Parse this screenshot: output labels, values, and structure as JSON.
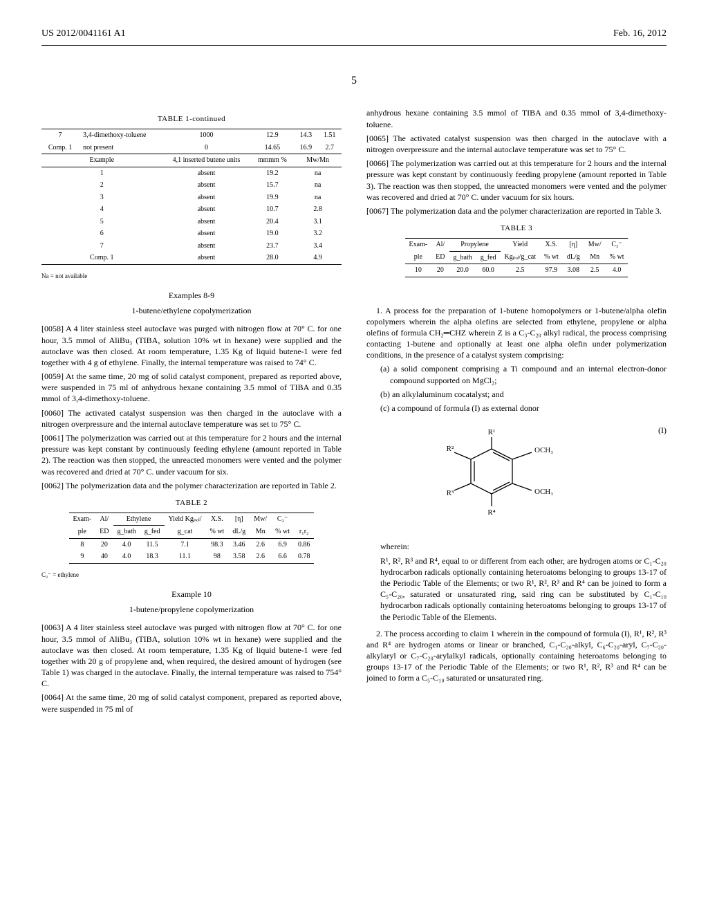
{
  "header": {
    "pubnum": "US 2012/0041161 A1",
    "pubdate": "Feb. 16, 2012"
  },
  "pagenum": "5",
  "table1c": {
    "title": "TABLE 1-continued",
    "toprows": [
      [
        "7",
        "3,4-dimethoxy-toluene",
        "1000",
        "12.9",
        "14.3",
        "1.51"
      ],
      [
        "Comp. 1",
        "not present",
        "0",
        "14.65",
        "16.9",
        "2.7"
      ]
    ],
    "headers": [
      "Example",
      "4,1 inserted butene units",
      "mmmm %",
      "Mw/Mn"
    ],
    "rows": [
      [
        "1",
        "absent",
        "19.2",
        "na"
      ],
      [
        "2",
        "absent",
        "15.7",
        "na"
      ],
      [
        "3",
        "absent",
        "19.9",
        "na"
      ],
      [
        "4",
        "absent",
        "10.7",
        "2.8"
      ],
      [
        "5",
        "absent",
        "20.4",
        "3.1"
      ],
      [
        "6",
        "absent",
        "19.0",
        "3.2"
      ],
      [
        "7",
        "absent",
        "23.7",
        "3.4"
      ],
      [
        "Comp. 1",
        "absent",
        "28.0",
        "4.9"
      ]
    ],
    "footnote": "Na = not available"
  },
  "sections": {
    "ex89_title": "Examples 8-9",
    "ex89_sub": "1-butene/ethylene copolymerization",
    "p58": "[0058]  A 4 liter stainless steel autoclave was purged with nitrogen flow at 70° C. for one hour, 3.5 mmol of AliBu₃ (TIBA, solution 10% wt in hexane) were supplied and the autoclave was then closed. At room temperature, 1.35 Kg of liquid butene-1 were fed together with 4 g of ethylene. Finally, the internal temperature was raised to 74° C.",
    "p59": "[0059]  At the same time, 20 mg of solid catalyst component, prepared as reported above, were suspended in 75 ml of anhydrous hexane containing 3.5 mmol of TIBA and 0.35 mmol of 3,4-dimethoxy-toluene.",
    "p60": "[0060]  The activated catalyst suspension was then charged in the autoclave with a nitrogen overpressure and the internal autoclave temperature was set to 75° C.",
    "p61": "[0061]  The polymerization was carried out at this temperature for 2 hours and the internal pressure was kept constant by continuously feeding ethylene (amount reported in Table 2). The reaction was then stopped, the unreacted monomers were vented and the polymer was recovered and dried at 70° C. under vacuum for six.",
    "p62": "[0062]  The polymerization data and the polymer characterization are reported in Table 2.",
    "ex10_title": "Example 10",
    "ex10_sub": "1-butene/propylene copolymerization",
    "p63": "[0063]  A 4 liter stainless steel autoclave was purged with nitrogen flow at 70° C. for one hour, 3.5 mmol of AliBu₃ (TIBA, solution 10% wt in hexane) were supplied and the autoclave was then closed. At room temperature, 1.35 Kg of liquid butene-1 were fed together with 20 g of propylene and, when required, the desired amount of hydrogen (see Table 1) was charged in the autoclave. Finally, the internal temperature was raised to 754° C.",
    "p64": "[0064]  At the same time, 20 mg of solid catalyst component, prepared as reported above, were suspended in 75 ml of",
    "p64b": "anhydrous hexane containing 3.5 mmol of TIBA and 0.35 mmol of 3,4-dimethoxy-toluene.",
    "p65": "[0065]  The activated catalyst suspension was then charged in the autoclave with a nitrogen overpressure and the internal autoclave temperature was set to 75° C.",
    "p66": "[0066]  The polymerization was carried out at this temperature for 2 hours and the internal pressure was kept constant by continuously feeding propylene (amount reported in Table 3). The reaction was then stopped, the unreacted monomers were vented and the polymer was recovered and dried at 70° C. under vacuum for six hours.",
    "p67": "[0067]  The polymerization data and the polymer characterization are reported in Table 3."
  },
  "table2": {
    "title": "TABLE 2",
    "row1": [
      "Exam-",
      "Al/",
      "Ethylene",
      "",
      "Yield Kgₚₒₗ/",
      "X.S.",
      "[η]",
      "Mw/",
      "C₂⁻",
      ""
    ],
    "row2": [
      "ple",
      "ED",
      "g_bath",
      "g_fed",
      "g_cat",
      "% wt",
      "dL/g",
      "Mn",
      "% wt",
      "r₁r₂"
    ],
    "data": [
      [
        "8",
        "20",
        "4.0",
        "11.5",
        "7.1",
        "98.3",
        "3.46",
        "2.6",
        "6.9",
        "0.86"
      ],
      [
        "9",
        "40",
        "4.0",
        "18.3",
        "11.1",
        "98",
        "3.58",
        "2.6",
        "6.6",
        "0.78"
      ]
    ],
    "footnote": "C₂⁻ = ethylene"
  },
  "table3": {
    "title": "TABLE 3",
    "row1": [
      "Exam-",
      "Al/",
      "Propylene",
      "",
      "Yield",
      "X.S.",
      "[η]",
      "Mw/",
      "C₃⁻"
    ],
    "row2": [
      "ple",
      "ED",
      "g_bath",
      "g_fed",
      "Kgₚₒₗ/g_cat",
      "% wt",
      "dL/g",
      "Mn",
      "% wt"
    ],
    "data": [
      [
        "10",
        "20",
        "20.0",
        "60.0",
        "2.5",
        "97.9",
        "3.08",
        "2.5",
        "4.0"
      ]
    ]
  },
  "claims": {
    "c1_lead": "1. A process for the preparation of 1-butene homopolymers or 1-butene/alpha olefin copolymers wherein the alpha olefins are selected from ethylene, propylene or alpha olefins of formula CH₂═CHZ wherein Z is a C₃-C₂₀ alkyl radical, the process comprising contacting 1-butene and optionally at least one alpha olefin under polymerization conditions, in the presence of a catalyst system comprising:",
    "c1a": "(a) a solid component comprising a Ti compound and an internal electron-donor compound supported on MgCl₂;",
    "c1b": "(b) an alkylaluminum cocatalyst; and",
    "c1c": "(c) a compound of formula (I) as external donor",
    "formula_label": "(I)",
    "wherein": "wherein:",
    "c1_r": "R¹, R², R³ and R⁴, equal to or different from each other, are hydrogen atoms or C₁-C₂₀ hydrocarbon radicals optionally containing heteroatoms belonging to groups 13-17 of the Periodic Table of the Elements; or two R¹, R², R³ and R⁴ can be joined to form a C₅-C₂₀, saturated or unsaturated ring, said ring can be substituted by C₁-C₁₀ hydrocarbon radicals optionally containing heteroatoms belonging to groups 13-17 of the Periodic Table of the Elements.",
    "c2": "2. The process according to claim 1 wherein in the compound of formula (I), R¹, R², R³ and R⁴ are hydrogen atoms or linear or branched, C₁-C₂₀-alkyl, C₆-C₂₀-aryl, C₇-C₂₀-alkylaryl or C₇-C₂₀-arylalkyl radicals, optionally containing heteroatoms belonging to groups 13-17 of the Periodic Table of the Elements; or two R¹, R², R³ and R⁴ can be joined to form a C₅-C₁₀ saturated or unsaturated ring."
  },
  "chem_labels": {
    "r1": "R¹",
    "r2": "R²",
    "r3": "R³",
    "r4": "R⁴",
    "och3a": "OCH₃",
    "och3b": "OCH₃"
  }
}
